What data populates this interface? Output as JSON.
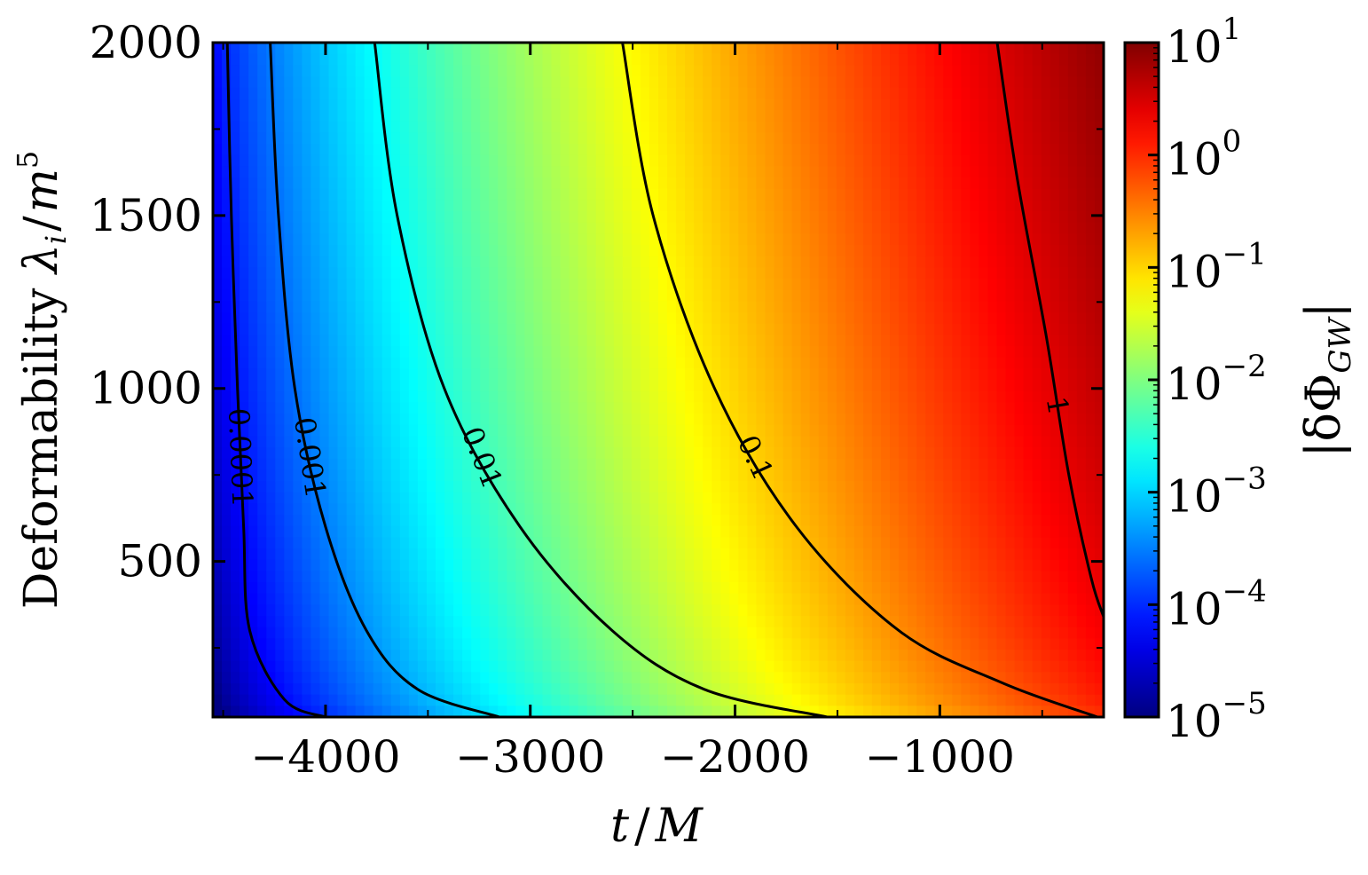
{
  "chart_data": {
    "type": "heatmap",
    "xlabel": {
      "main": "t",
      "slash": "/",
      "tail": "M"
    },
    "ylabel": {
      "prefix": "Deformability ",
      "main": "λ",
      "sub": "i",
      "slash": "/",
      "tail": "m",
      "sup": "5"
    },
    "colorbar_label": {
      "prefix": "|δΦ",
      "sub": "GW",
      "suffix": "|"
    },
    "xlim": [
      -4550,
      -200
    ],
    "ylim": [
      50,
      2000
    ],
    "x_ticks": [
      -4000,
      -3000,
      -2000,
      -1000
    ],
    "x_tick_labels": [
      "−4000",
      "−3000",
      "−2000",
      "−1000"
    ],
    "y_ticks": [
      500,
      1000,
      1500,
      2000
    ],
    "y_tick_labels": [
      "500",
      "1000",
      "1500",
      "2000"
    ],
    "colorbar_ticks": [
      -5,
      -4,
      -3,
      -2,
      -1,
      0,
      1
    ],
    "colorbar_tick_labels": [
      {
        "base": "10",
        "exp": "−5"
      },
      {
        "base": "10",
        "exp": "−4"
      },
      {
        "base": "10",
        "exp": "−3"
      },
      {
        "base": "10",
        "exp": "−2"
      },
      {
        "base": "10",
        "exp": "−1"
      },
      {
        "base": "10",
        "exp": "0"
      },
      {
        "base": "10",
        "exp": "1"
      }
    ],
    "colorbar_range": [
      -5,
      1
    ],
    "colorbar_scale": "log",
    "colormap": "jet",
    "contours": [
      {
        "label": "0.0001",
        "points": [
          [
            -4480,
            2000
          ],
          [
            -4460,
            1500
          ],
          [
            -4430,
            1000
          ],
          [
            -4400,
            600
          ],
          [
            -4370,
            300
          ],
          [
            -4200,
            100
          ],
          [
            -4000,
            50
          ]
        ]
      },
      {
        "label": "0.001",
        "points": [
          [
            -4270,
            2000
          ],
          [
            -4230,
            1500
          ],
          [
            -4150,
            1000
          ],
          [
            -4000,
            600
          ],
          [
            -3800,
            300
          ],
          [
            -3550,
            130
          ],
          [
            -3150,
            50
          ]
        ]
      },
      {
        "label": "0.01",
        "points": [
          [
            -3760,
            2000
          ],
          [
            -3650,
            1500
          ],
          [
            -3420,
            1000
          ],
          [
            -3050,
            600
          ],
          [
            -2600,
            300
          ],
          [
            -2150,
            130
          ],
          [
            -1550,
            50
          ]
        ]
      },
      {
        "label": "0.1",
        "points": [
          [
            -2550,
            2000
          ],
          [
            -2400,
            1500
          ],
          [
            -2100,
            1000
          ],
          [
            -1700,
            600
          ],
          [
            -1200,
            300
          ],
          [
            -700,
            150
          ],
          [
            -230,
            50
          ]
        ]
      },
      {
        "label": "1",
        "points": [
          [
            -720,
            2000
          ],
          [
            -620,
            1600
          ],
          [
            -480,
            1150
          ],
          [
            -370,
            750
          ],
          [
            -260,
            450
          ],
          [
            -200,
            340
          ]
        ]
      }
    ]
  }
}
